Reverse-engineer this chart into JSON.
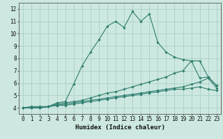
{
  "xlabel": "Humidex (Indice chaleur)",
  "background_color": "#cce8e0",
  "grid_color": "#aacfc8",
  "line_color": "#2e7d6e",
  "x_values": [
    0,
    1,
    2,
    3,
    4,
    5,
    6,
    7,
    8,
    9,
    10,
    11,
    12,
    13,
    14,
    15,
    16,
    17,
    18,
    19,
    20,
    21,
    22,
    23
  ],
  "series": [
    [
      4.0,
      4.1,
      4.1,
      4.1,
      4.4,
      4.5,
      5.9,
      7.4,
      8.5,
      9.5,
      10.6,
      11.0,
      10.5,
      11.8,
      11.0,
      11.6,
      9.3,
      8.5,
      8.1,
      7.9,
      7.8,
      7.8,
      6.5,
      5.8
    ],
    [
      4.0,
      4.0,
      4.0,
      4.1,
      4.3,
      4.4,
      4.5,
      4.6,
      4.8,
      5.0,
      5.2,
      5.3,
      5.5,
      5.7,
      5.9,
      6.1,
      6.3,
      6.5,
      6.8,
      7.0,
      7.8,
      6.4,
      6.5,
      5.8
    ],
    [
      4.0,
      4.0,
      4.0,
      4.1,
      4.2,
      4.3,
      4.4,
      4.5,
      4.6,
      4.7,
      4.8,
      4.9,
      5.0,
      5.1,
      5.2,
      5.3,
      5.4,
      5.5,
      5.6,
      5.7,
      5.9,
      6.1,
      6.4,
      5.6
    ],
    [
      4.0,
      4.0,
      4.0,
      4.1,
      4.2,
      4.2,
      4.3,
      4.4,
      4.5,
      4.6,
      4.7,
      4.8,
      4.9,
      5.0,
      5.1,
      5.2,
      5.3,
      5.4,
      5.5,
      5.5,
      5.6,
      5.7,
      5.5,
      5.4
    ]
  ],
  "ylim": [
    3.5,
    12.5
  ],
  "xlim": [
    -0.5,
    23.5
  ],
  "yticks": [
    4,
    5,
    6,
    7,
    8,
    9,
    10,
    11,
    12
  ],
  "xticks": [
    0,
    1,
    2,
    3,
    4,
    5,
    6,
    7,
    8,
    9,
    10,
    11,
    12,
    13,
    14,
    15,
    16,
    17,
    18,
    19,
    20,
    21,
    22,
    23
  ],
  "tick_fontsize": 5.5,
  "xlabel_fontsize": 6.5
}
